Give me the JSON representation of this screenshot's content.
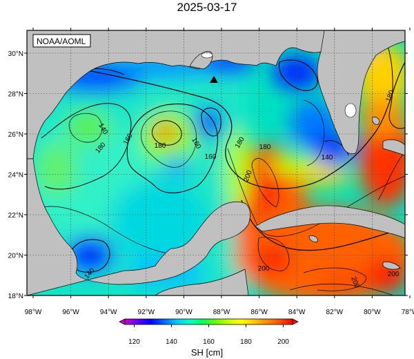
{
  "title": "2025-03-17",
  "source_label": "NOAA/AOML",
  "colorbar": {
    "title": "SH [cm]",
    "ticks": [
      "120",
      "140",
      "160",
      "180",
      "200"
    ],
    "min": 115,
    "max": 205,
    "colors": [
      "#c800c8",
      "#6400ff",
      "#0000ff",
      "#0064ff",
      "#00c8ff",
      "#00ffc8",
      "#00ff64",
      "#64ff00",
      "#c8ff00",
      "#ffff00",
      "#ffc800",
      "#ff8c00",
      "#ff5000",
      "#ff0000"
    ]
  },
  "map": {
    "lon_labels": [
      "98°W",
      "96°W",
      "94°W",
      "92°W",
      "90°W",
      "88°W",
      "86°W",
      "84°W",
      "82°W",
      "80°W",
      "78°W"
    ],
    "lat_labels": [
      "30°N",
      "28°N",
      "26°N",
      "24°N",
      "22°N",
      "20°N",
      "18°N"
    ],
    "land_color": "#c0c0c0",
    "contour_labels": [
      "180",
      "160",
      "180",
      "140",
      "160",
      "180",
      "200",
      "160",
      "180",
      "140",
      "180",
      "200",
      "140",
      "200",
      "200"
    ],
    "marker": "triangle"
  }
}
